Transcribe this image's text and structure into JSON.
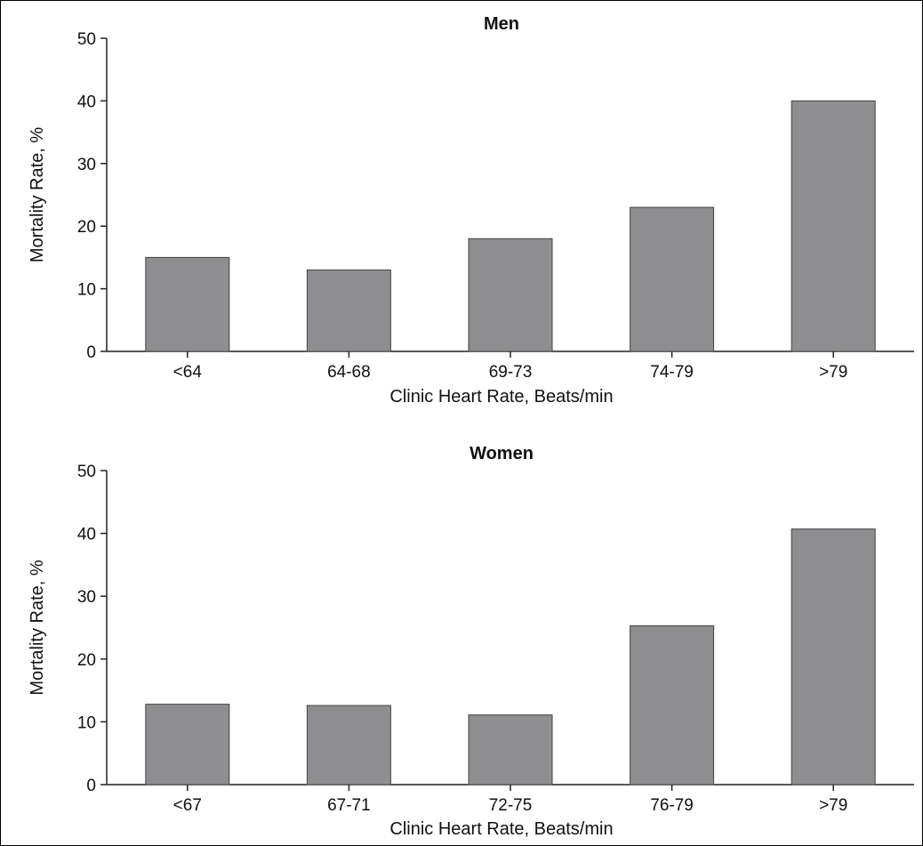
{
  "chart_data": [
    {
      "type": "bar",
      "title": "Men",
      "xlabel": "Clinic Heart Rate, Beats/min",
      "ylabel": "Mortality Rate, %",
      "categories": [
        "<64",
        "64-68",
        "69-73",
        "74-79",
        ">79"
      ],
      "values": [
        15,
        13,
        18,
        23,
        40
      ],
      "ylim": [
        0,
        50
      ],
      "yticks": [
        0,
        10,
        20,
        30,
        40,
        50
      ],
      "bar_color": "#8e8e90",
      "grid": false,
      "legend": "none"
    },
    {
      "type": "bar",
      "title": "Women",
      "xlabel": "Clinic Heart Rate, Beats/min",
      "ylabel": "Mortality Rate, %",
      "categories": [
        "<67",
        "67-71",
        "72-75",
        "76-79",
        ">79"
      ],
      "values": [
        12.8,
        12.6,
        11.1,
        25.3,
        40.7
      ],
      "ylim": [
        0,
        50
      ],
      "yticks": [
        0,
        10,
        20,
        30,
        40,
        50
      ],
      "bar_color": "#8e8e90",
      "grid": false,
      "legend": "none"
    }
  ]
}
